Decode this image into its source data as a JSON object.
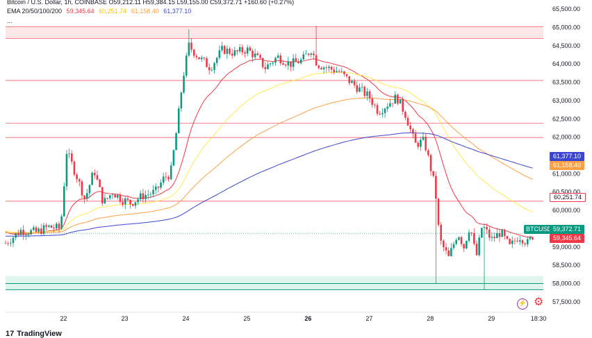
{
  "header": {
    "line1": "Bitcoin / U.S. Dollar, 1h, COINBASE  O59,212.11  H59,384.15  L59,155.00  C59,372.71  +160.60 (+0.27%)",
    "ema_label": "EMA 20/50/100/200",
    "ema_values": [
      "59,345.64",
      "60,251.74",
      "61,158.40",
      "61,377.10"
    ],
    "more": "..."
  },
  "price_tags": {
    "ema200": "61,377.10",
    "ema100": "61,158.40",
    "ema50": "60,251.74",
    "symbol": "BTCUSD",
    "last": "59,372.71",
    "ema20": "59,345.64"
  },
  "footer": {
    "brand": "TradingView"
  },
  "colors": {
    "up": "#089981",
    "down": "#f23645",
    "ema20": "#f23645",
    "ema50": "#ffe94d",
    "ema100": "#ff9f43",
    "ema200": "#3b44d1",
    "resistance": "#f23645",
    "support": "#089981"
  },
  "chart_data": {
    "type": "candlestick",
    "title": "Bitcoin / U.S. Dollar, 1h, COINBASE",
    "ylim": [
      57250,
      65750
    ],
    "y_ticks": [
      "57,500.00",
      "58,000.00",
      "58,500.00",
      "59,000.00",
      "59,500.00",
      "60,000.00",
      "60,500.00",
      "61,000.00",
      "61,500.00",
      "62,000.00",
      "62,500.00",
      "63,000.00",
      "63,500.00",
      "64,000.00",
      "64,500.00",
      "65,000.00",
      "65,500.00"
    ],
    "x_ticks": [
      "22",
      "23",
      "24",
      "25",
      "26",
      "27",
      "28",
      "29",
      "18:30"
    ],
    "x_tick_days": [
      22,
      23,
      24,
      25,
      26,
      27,
      28,
      29,
      29.77
    ],
    "x_range_days": [
      21.05,
      29.85
    ],
    "horizontal_levels": {
      "resistance": [
        64700,
        65020,
        63550,
        62380,
        61990,
        60251.74
      ],
      "support": [
        57830,
        58000
      ]
    },
    "ohlc_anchors_days": [
      21.05,
      21.3,
      21.55,
      21.75,
      21.95,
      22.05,
      22.2,
      22.35,
      22.5,
      22.65,
      22.8,
      22.95,
      23.1,
      23.3,
      23.5,
      23.65,
      23.75,
      23.85,
      23.95,
      24.05,
      24.2,
      24.4,
      24.6,
      24.8,
      25.0,
      25.15,
      25.3,
      25.5,
      25.7,
      25.9,
      26.05,
      26.15,
      26.3,
      26.5,
      26.7,
      26.85,
      27.0,
      27.15,
      27.3,
      27.45,
      27.6,
      27.75,
      27.9,
      28.0,
      28.08,
      28.15,
      28.3,
      28.45,
      28.55,
      28.65,
      28.75,
      28.85,
      29.0,
      29.15,
      29.3,
      29.45,
      29.6,
      29.7
    ],
    "close_anchors": [
      59100,
      59450,
      59400,
      59550,
      59500,
      61600,
      61000,
      60300,
      61100,
      60200,
      60500,
      60300,
      60200,
      60400,
      60500,
      60900,
      61000,
      62200,
      63600,
      64500,
      64200,
      63900,
      64400,
      64300,
      64400,
      64200,
      63900,
      64200,
      64000,
      64100,
      64400,
      64000,
      63900,
      63800,
      63500,
      63300,
      63100,
      62700,
      62900,
      63100,
      62600,
      61800,
      61900,
      61200,
      60600,
      59200,
      58700,
      59400,
      59000,
      59600,
      58700,
      59600,
      59200,
      59400,
      59000,
      59300,
      59100,
      59372.71
    ],
    "ema20_last": 59345.64,
    "ema50_last": 60251.74,
    "ema100_last": 61158.4,
    "ema200_last": 61377.1
  }
}
